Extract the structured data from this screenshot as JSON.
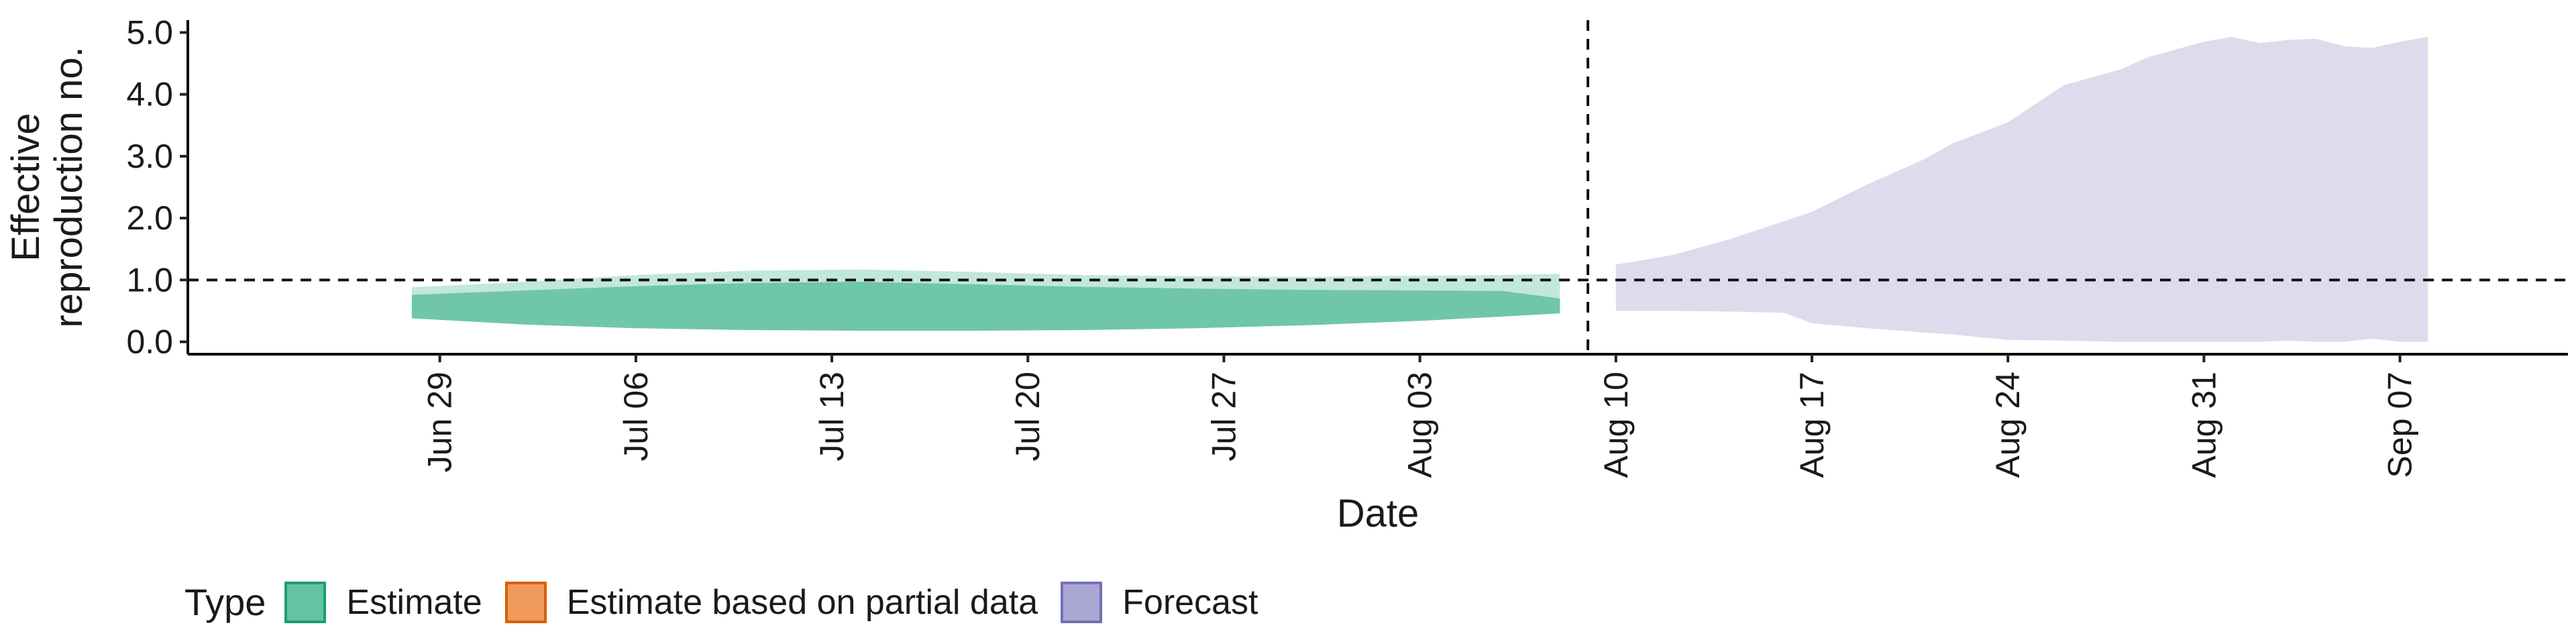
{
  "chart_data": {
    "type": "area",
    "ylabel": "Effective\nreproduction no.",
    "xlabel": "Date",
    "ylim": [
      -0.2,
      5.2
    ],
    "xlim": [
      "2020-06-20",
      "2020-09-13"
    ],
    "yticks": [
      "0.0",
      "1.0",
      "2.0",
      "3.0",
      "4.0",
      "5.0"
    ],
    "xticks": [
      {
        "date": "2020-06-29",
        "label": "Jun 29"
      },
      {
        "date": "2020-07-06",
        "label": "Jul 06"
      },
      {
        "date": "2020-07-13",
        "label": "Jul 13"
      },
      {
        "date": "2020-07-20",
        "label": "Jul 20"
      },
      {
        "date": "2020-07-27",
        "label": "Jul 27"
      },
      {
        "date": "2020-08-03",
        "label": "Aug 03"
      },
      {
        "date": "2020-08-10",
        "label": "Aug 10"
      },
      {
        "date": "2020-08-17",
        "label": "Aug 17"
      },
      {
        "date": "2020-08-24",
        "label": "Aug 24"
      },
      {
        "date": "2020-08-31",
        "label": "Aug 31"
      },
      {
        "date": "2020-09-07",
        "label": "Sep 07"
      }
    ],
    "reference_hline": 1.0,
    "reference_vline": "2020-08-09",
    "grid": false,
    "legend_position": "bottom",
    "legend": {
      "title": "Type",
      "items": [
        {
          "label": "Estimate",
          "fill": "#66c2a5",
          "stroke": "#1b9e77"
        },
        {
          "label": "Estimate based on partial data",
          "fill": "#f09a5e",
          "stroke": "#d95f02"
        },
        {
          "label": "Forecast",
          "fill": "#aba7d3",
          "stroke": "#7570b3"
        }
      ]
    },
    "series": [
      {
        "type": "Estimate",
        "color": "#66c2a5",
        "x": [
          "2020-06-28",
          "2020-07-02",
          "2020-07-06",
          "2020-07-10",
          "2020-07-14",
          "2020-07-18",
          "2020-07-22",
          "2020-07-26",
          "2020-07-30",
          "2020-08-03",
          "2020-08-06",
          "2020-08-08"
        ],
        "outer_lower": [
          0.38,
          0.28,
          0.22,
          0.19,
          0.18,
          0.18,
          0.19,
          0.22,
          0.27,
          0.34,
          0.41,
          0.46
        ],
        "outer_upper": [
          0.88,
          0.97,
          1.08,
          1.15,
          1.17,
          1.13,
          1.08,
          1.06,
          1.05,
          1.07,
          1.08,
          1.1
        ],
        "inner_lower": [
          0.38,
          0.28,
          0.22,
          0.19,
          0.18,
          0.18,
          0.19,
          0.22,
          0.27,
          0.34,
          0.41,
          0.46
        ],
        "inner_upper": [
          0.76,
          0.83,
          0.9,
          0.95,
          0.97,
          0.93,
          0.89,
          0.86,
          0.84,
          0.83,
          0.82,
          0.7
        ]
      },
      {
        "type": "Forecast",
        "color": "#aba7d3",
        "x": [
          "2020-08-10",
          "2020-08-12",
          "2020-08-14",
          "2020-08-16",
          "2020-08-17",
          "2020-08-19",
          "2020-08-21",
          "2020-08-22",
          "2020-08-24",
          "2020-08-26",
          "2020-08-28",
          "2020-08-29",
          "2020-08-31",
          "2020-09-01",
          "2020-09-02",
          "2020-09-03",
          "2020-09-04",
          "2020-09-05",
          "2020-09-06",
          "2020-09-07",
          "2020-09-08"
        ],
        "lower": [
          0.5,
          0.5,
          0.49,
          0.47,
          0.3,
          0.22,
          0.15,
          0.12,
          0.03,
          0.02,
          0.0,
          0.0,
          0.0,
          0.0,
          0.0,
          0.02,
          0.0,
          0.0,
          0.05,
          0.0,
          0.0
        ],
        "upper": [
          1.25,
          1.4,
          1.65,
          1.95,
          2.1,
          2.55,
          2.95,
          3.2,
          3.55,
          4.15,
          4.4,
          4.6,
          4.85,
          4.93,
          4.83,
          4.88,
          4.9,
          4.78,
          4.75,
          4.85,
          4.93
        ]
      }
    ]
  }
}
